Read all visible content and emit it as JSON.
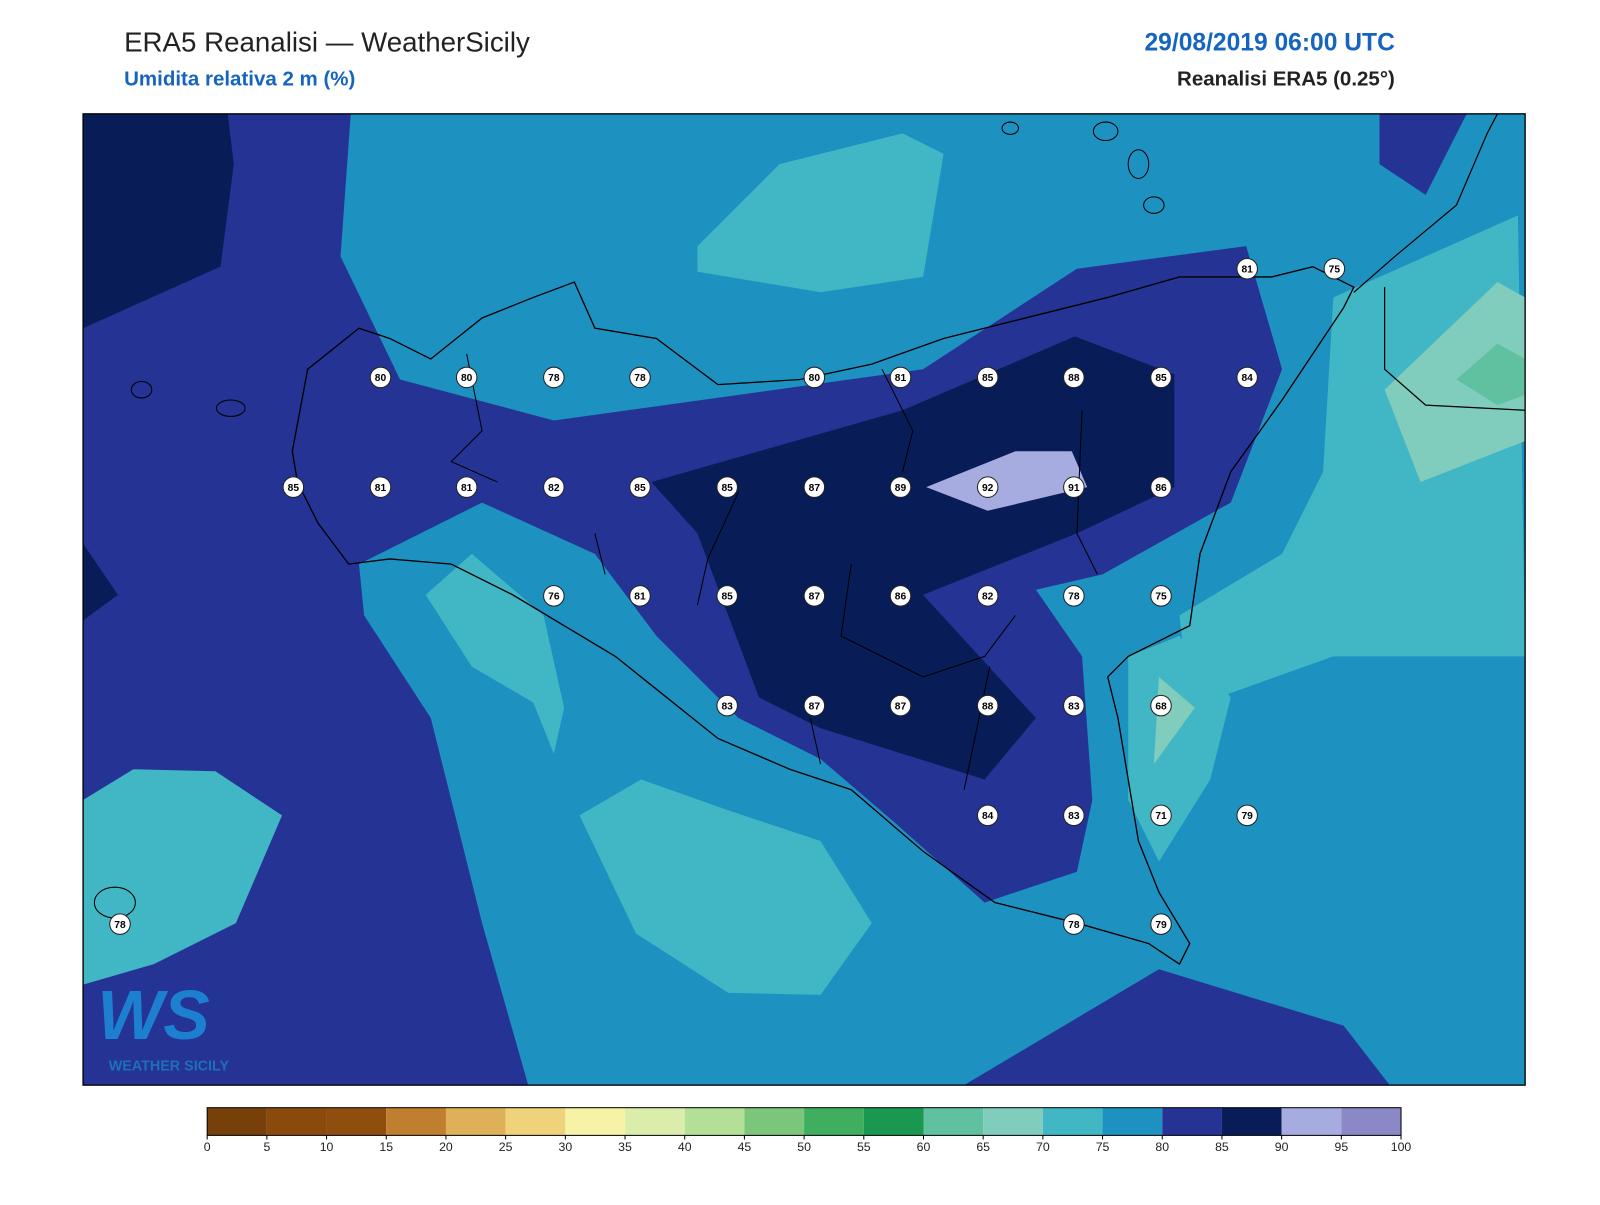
{
  "header": {
    "title": "ERA5 Reanalisi — WeatherSicily",
    "subtitle": "Umidita relativa 2 m (%)",
    "date": "29/08/2019 06:00 UTC",
    "source": "Reanalisi ERA5 (0.25°)"
  },
  "stations": [
    81,
    75,
    80,
    80,
    78,
    78,
    80,
    81,
    85,
    88,
    85,
    84,
    85,
    81,
    81,
    82,
    85,
    85,
    87,
    89,
    92,
    91,
    86,
    76,
    81,
    85,
    87,
    86,
    82,
    78,
    75,
    83,
    87,
    87,
    88,
    83,
    68,
    84,
    83,
    71,
    79,
    78,
    78,
    79
  ],
  "logo": {
    "mark": "WS",
    "text": "WEATHER SICILY"
  },
  "colorbar": {
    "ticks": [
      0,
      5,
      10,
      15,
      20,
      25,
      30,
      35,
      40,
      45,
      50,
      55,
      60,
      65,
      70,
      75,
      80,
      85,
      90,
      95,
      100
    ],
    "colors": [
      "#77400a",
      "#8a4a0c",
      "#8f4d0e",
      "#bf7f2e",
      "#deb058",
      "#f0d27a",
      "#f6f2a6",
      "#dbedaa",
      "#b3e096",
      "#7cc67c",
      "#3fae5e",
      "#1a9850",
      "#5fc1a0",
      "#80cdbd",
      "#41b6c4",
      "#1d91c0",
      "#253494",
      "#081d58",
      "#a6acdf",
      "#8b88c8"
    ]
  }
}
